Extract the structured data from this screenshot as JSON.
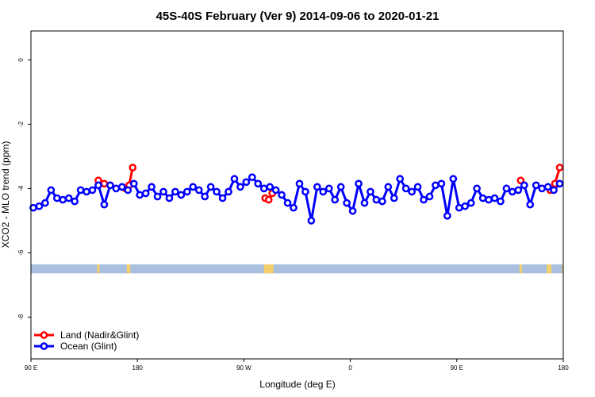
{
  "chart_data": {
    "type": "line",
    "title": "45S-40S February (Ver 9)   2014-09-06 to 2020-01-21",
    "xlabel": "Longitude (deg E)",
    "ylabel": "XCO2 - MLO trend (ppm)",
    "x_ticks": [
      {
        "value": 90,
        "label": "90 E"
      },
      {
        "value": 180,
        "label": "180"
      },
      {
        "value": 270,
        "label": "90 W"
      },
      {
        "value": 360,
        "label": "0"
      },
      {
        "value": 450,
        "label": "90 E"
      },
      {
        "value": 540,
        "label": "180"
      }
    ],
    "y_ticks": [
      {
        "value": 0,
        "label": "0"
      },
      {
        "value": -2,
        "label": "-2"
      },
      {
        "value": -4,
        "label": "-4"
      },
      {
        "value": -6,
        "label": "-6"
      },
      {
        "value": -8,
        "label": "-8"
      }
    ],
    "xlim": [
      90,
      540
    ],
    "ylim": [
      -9.3,
      0.9
    ],
    "grid": false,
    "legend_position": "bottom-left",
    "land_ocean_strip": {
      "y_center": -6.5,
      "y_halfwidth": 0.14,
      "ocean_color": "#a9bfdf",
      "land_color": "#f4d06a",
      "land_segments": [
        [
          146,
          148
        ],
        [
          171,
          174
        ],
        [
          287,
          295
        ],
        [
          503,
          505
        ],
        [
          526,
          530
        ],
        [
          539,
          540
        ]
      ]
    },
    "series": [
      {
        "name": "Land (Nadir&Glint)",
        "color": "#ff0000",
        "segments": [
          [
            [
              147,
              -3.75
            ],
            [
              152,
              -3.85
            ]
          ],
          [
            [
              170,
              -4.0
            ],
            [
              173,
              -3.9
            ],
            [
              176,
              -3.35
            ]
          ],
          [
            [
              288,
              -4.3
            ],
            [
              291,
              -4.35
            ],
            [
              294,
              -4.15
            ]
          ],
          [
            [
              504,
              -3.75
            ]
          ],
          [
            [
              529,
              -4.05
            ],
            [
              533,
              -3.85
            ],
            [
              537,
              -3.35
            ]
          ]
        ]
      },
      {
        "name": "Ocean (Glint)",
        "color": "#0000ff",
        "points": [
          [
            92,
            -4.6
          ],
          [
            97,
            -4.55
          ],
          [
            102,
            -4.45
          ],
          [
            107,
            -4.05
          ],
          [
            112,
            -4.3
          ],
          [
            117,
            -4.35
          ],
          [
            122,
            -4.3
          ],
          [
            127,
            -4.4
          ],
          [
            132,
            -4.05
          ],
          [
            137,
            -4.1
          ],
          [
            142,
            -4.05
          ],
          [
            147,
            -3.9
          ],
          [
            152,
            -4.5
          ],
          [
            157,
            -3.9
          ],
          [
            162,
            -4.0
          ],
          [
            167,
            -3.95
          ],
          [
            172,
            -4.05
          ],
          [
            177,
            -3.85
          ],
          [
            182,
            -4.2
          ],
          [
            187,
            -4.15
          ],
          [
            192,
            -3.95
          ],
          [
            197,
            -4.25
          ],
          [
            202,
            -4.1
          ],
          [
            207,
            -4.3
          ],
          [
            212,
            -4.1
          ],
          [
            217,
            -4.2
          ],
          [
            222,
            -4.1
          ],
          [
            227,
            -3.95
          ],
          [
            232,
            -4.05
          ],
          [
            237,
            -4.25
          ],
          [
            242,
            -3.95
          ],
          [
            247,
            -4.1
          ],
          [
            252,
            -4.3
          ],
          [
            257,
            -4.1
          ],
          [
            262,
            -3.7
          ],
          [
            267,
            -3.95
          ],
          [
            272,
            -3.8
          ],
          [
            277,
            -3.65
          ],
          [
            282,
            -3.85
          ],
          [
            287,
            -4.0
          ],
          [
            292,
            -3.95
          ],
          [
            297,
            -4.05
          ],
          [
            302,
            -4.2
          ],
          [
            307,
            -4.45
          ],
          [
            312,
            -4.6
          ],
          [
            317,
            -3.85
          ],
          [
            322,
            -4.1
          ],
          [
            327,
            -5.0
          ],
          [
            332,
            -3.95
          ],
          [
            337,
            -4.1
          ],
          [
            342,
            -4.0
          ],
          [
            347,
            -4.35
          ],
          [
            352,
            -3.95
          ],
          [
            357,
            -4.45
          ],
          [
            362,
            -4.7
          ],
          [
            367,
            -3.85
          ],
          [
            372,
            -4.45
          ],
          [
            377,
            -4.1
          ],
          [
            382,
            -4.35
          ],
          [
            387,
            -4.4
          ],
          [
            392,
            -3.95
          ],
          [
            397,
            -4.3
          ],
          [
            402,
            -3.7
          ],
          [
            407,
            -4.0
          ],
          [
            412,
            -4.1
          ],
          [
            417,
            -3.95
          ],
          [
            422,
            -4.35
          ],
          [
            427,
            -4.25
          ],
          [
            432,
            -3.9
          ],
          [
            437,
            -3.85
          ],
          [
            442,
            -4.85
          ],
          [
            447,
            -3.7
          ],
          [
            452,
            -4.6
          ],
          [
            457,
            -4.55
          ],
          [
            462,
            -4.45
          ],
          [
            467,
            -4.0
          ],
          [
            472,
            -4.3
          ],
          [
            477,
            -4.35
          ],
          [
            482,
            -4.3
          ],
          [
            487,
            -4.4
          ],
          [
            492,
            -4.0
          ],
          [
            497,
            -4.1
          ],
          [
            502,
            -4.05
          ],
          [
            507,
            -3.9
          ],
          [
            512,
            -4.5
          ],
          [
            517,
            -3.9
          ],
          [
            522,
            -4.0
          ],
          [
            527,
            -3.95
          ],
          [
            532,
            -4.05
          ],
          [
            537,
            -3.85
          ]
        ]
      }
    ]
  }
}
